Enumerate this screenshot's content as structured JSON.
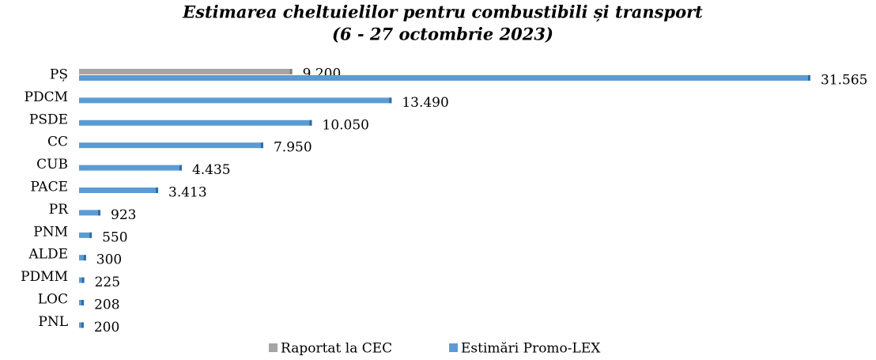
{
  "chart_data": {
    "type": "bar",
    "orientation": "horizontal",
    "title": "Estimarea cheltuielilor pentru combustibili și transport",
    "subtitle": "(6 - 27 octombrie 2023)",
    "categories": [
      "PȘ",
      "PDCM",
      "PSDE",
      "CC",
      "CUB",
      "PACE",
      "PR",
      "PNM",
      "ALDE",
      "PDMM",
      "LOC",
      "PNL"
    ],
    "series": [
      {
        "name": "Raportat la CEC",
        "color": "#a5a5a5",
        "values": [
          9200,
          null,
          null,
          null,
          null,
          null,
          null,
          null,
          null,
          null,
          null,
          null
        ],
        "value_labels": [
          "9.200",
          null,
          null,
          null,
          null,
          null,
          null,
          null,
          null,
          null,
          null,
          null
        ]
      },
      {
        "name": "Estimări Promo-LEX",
        "color": "#5b9bd5",
        "values": [
          31565,
          13490,
          10050,
          7950,
          4435,
          3413,
          923,
          550,
          300,
          225,
          208,
          200
        ],
        "value_labels": [
          "31.565",
          "13.490",
          "10.050",
          "7.950",
          "4.435",
          "3.413",
          "923",
          "550",
          "300",
          "225",
          "208",
          "200"
        ]
      }
    ],
    "legend": "bottom"
  }
}
